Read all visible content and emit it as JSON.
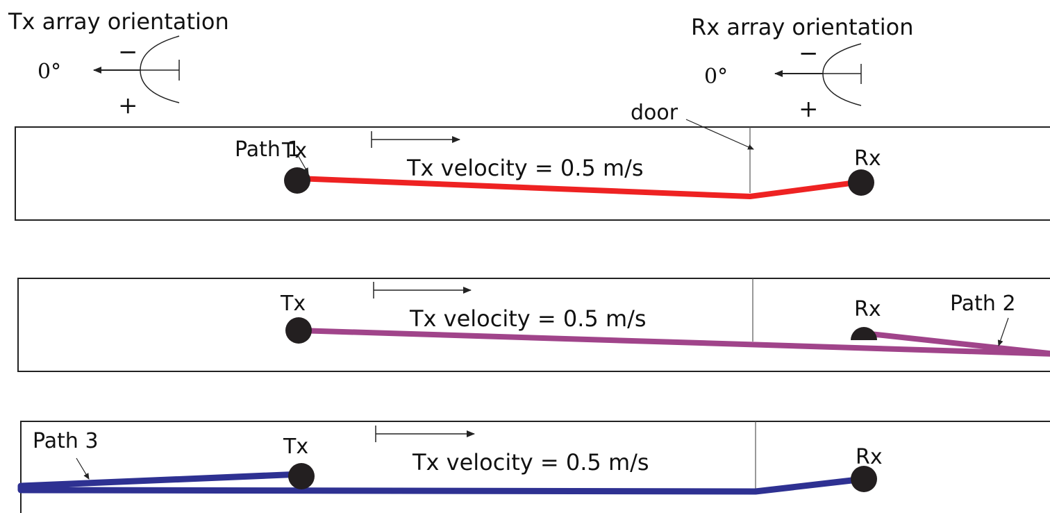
{
  "orientation": {
    "tx_title": "Tx array orientation",
    "rx_title": "Rx array orientation",
    "zero_label": "0°",
    "minus_label": "−",
    "plus_label": "+"
  },
  "door_label": "door",
  "scenes": [
    {
      "tx_label": "Tx",
      "rx_label": "Rx",
      "velocity_label": "Tx velocity = 0.5 m/s",
      "path_label": "Path 1",
      "path_color": "#ee2222"
    },
    {
      "tx_label": "Tx",
      "rx_label": "Rx",
      "velocity_label": "Tx velocity = 0.5 m/s",
      "path_label": "Path 2",
      "path_color": "#a0448a"
    },
    {
      "tx_label": "Tx",
      "rx_label": "Rx",
      "velocity_label": "Tx velocity = 0.5 m/s",
      "path_label": "Path 3",
      "path_color": "#2e3192"
    }
  ]
}
